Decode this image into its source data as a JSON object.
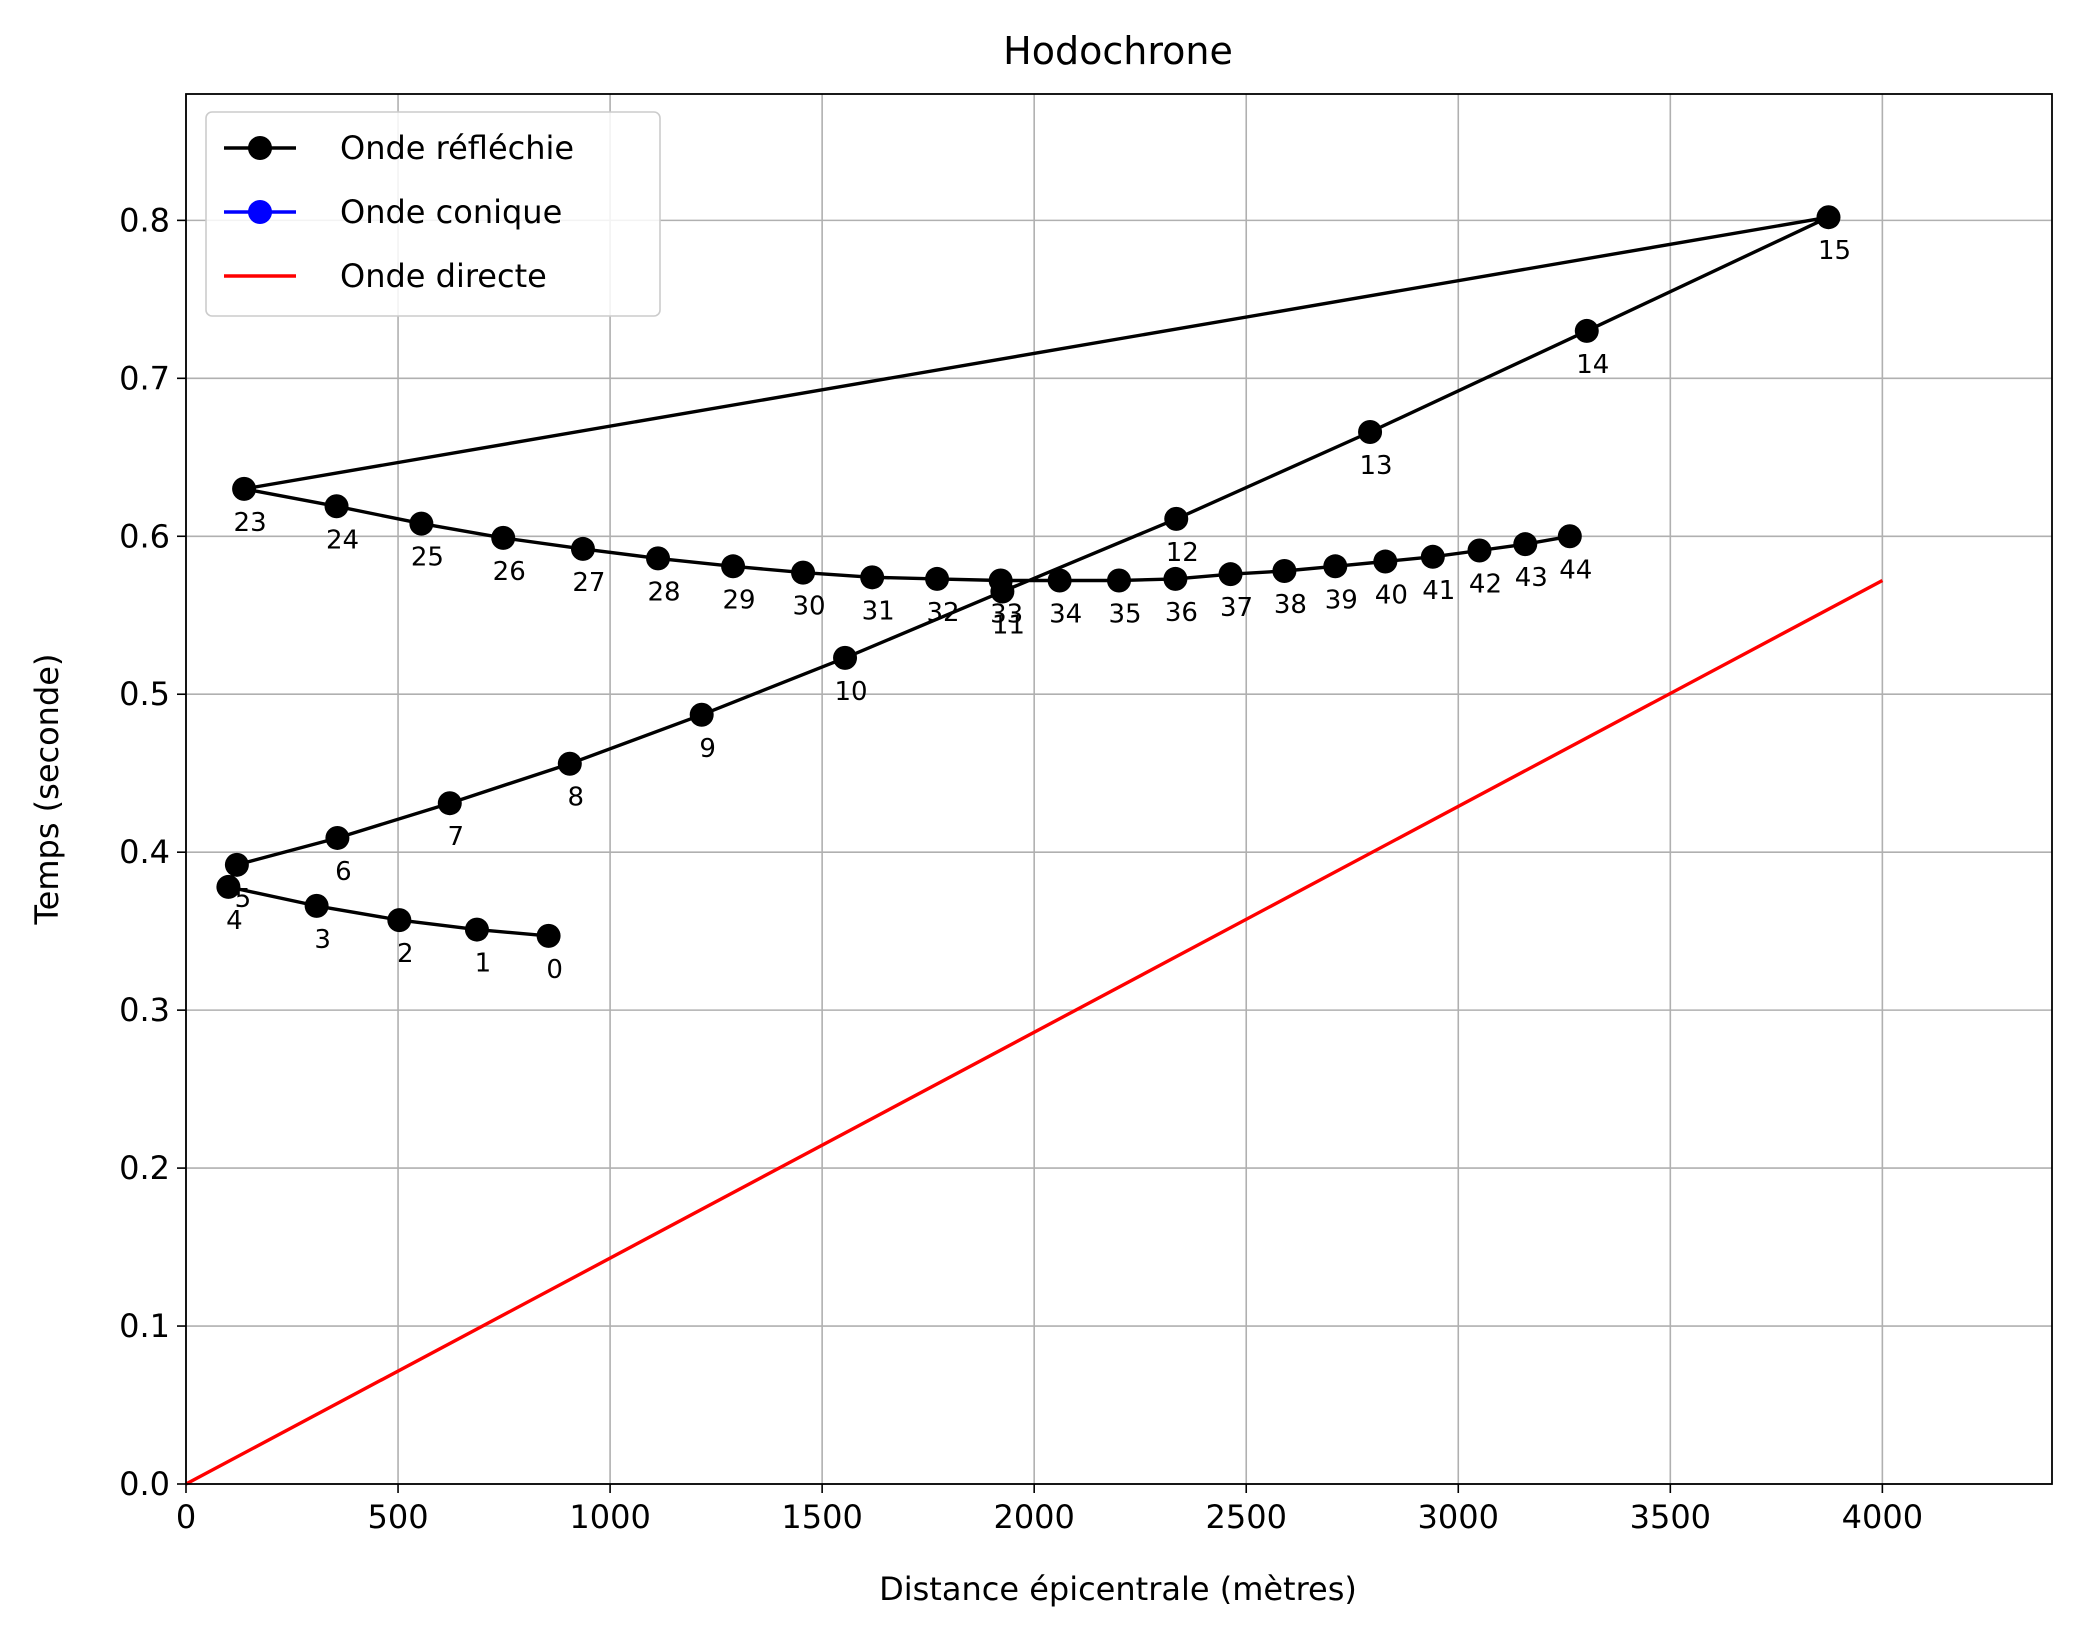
{
  "chart_data": {
    "type": "line",
    "title": "Hodochrone",
    "xlabel": "Distance épicentrale (mètres)",
    "ylabel": "Temps (seconde)",
    "xlim": [
      0,
      4400
    ],
    "ylim": [
      0,
      0.88
    ],
    "x_ticks": [
      "0",
      "500",
      "1000",
      "1500",
      "2000",
      "2500",
      "3000",
      "3500",
      "4000"
    ],
    "y_ticks": [
      "0.0",
      "0.1",
      "0.2",
      "0.3",
      "0.4",
      "0.5",
      "0.6",
      "0.7",
      "0.8"
    ],
    "grid": true,
    "legend_position": "top-left",
    "legend": [
      {
        "label": "Onde réfléchie",
        "color": "#000000",
        "marker": "circle"
      },
      {
        "label": "Onde conique",
        "color": "#0000ff",
        "marker": "circle"
      },
      {
        "label": "Onde directe",
        "color": "#ff0000",
        "marker": "none"
      }
    ],
    "series": [
      {
        "name": "Onde réfléchie",
        "color": "#000000",
        "marker": "circle",
        "points": [
          {
            "label": "0",
            "x": 855,
            "y": 0.347
          },
          {
            "label": "1",
            "x": 686,
            "y": 0.351
          },
          {
            "label": "2",
            "x": 503,
            "y": 0.357
          },
          {
            "label": "3",
            "x": 308,
            "y": 0.366
          },
          {
            "label": "4",
            "x": 100,
            "y": 0.378
          },
          {
            "label": "5",
            "x": 120,
            "y": 0.392
          },
          {
            "label": "6",
            "x": 357,
            "y": 0.409
          },
          {
            "label": "7",
            "x": 622,
            "y": 0.431
          },
          {
            "label": "8",
            "x": 905,
            "y": 0.456
          },
          {
            "label": "9",
            "x": 1216,
            "y": 0.487
          },
          {
            "label": "10",
            "x": 1554,
            "y": 0.523
          },
          {
            "label": "11",
            "x": 1925,
            "y": 0.565
          },
          {
            "label": "12",
            "x": 2335,
            "y": 0.611
          },
          {
            "label": "13",
            "x": 2792,
            "y": 0.666
          },
          {
            "label": "14",
            "x": 3303,
            "y": 0.73
          },
          {
            "label": "15",
            "x": 3873,
            "y": 0.802
          },
          {
            "label": "23",
            "x": 137,
            "y": 0.63
          },
          {
            "label": "24",
            "x": 355,
            "y": 0.619
          },
          {
            "label": "25",
            "x": 555,
            "y": 0.608
          },
          {
            "label": "26",
            "x": 748,
            "y": 0.599
          },
          {
            "label": "27",
            "x": 936,
            "y": 0.592
          },
          {
            "label": "28",
            "x": 1113,
            "y": 0.586
          },
          {
            "label": "29",
            "x": 1290,
            "y": 0.581
          },
          {
            "label": "30",
            "x": 1455,
            "y": 0.577
          },
          {
            "label": "31",
            "x": 1618,
            "y": 0.574
          },
          {
            "label": "32",
            "x": 1771,
            "y": 0.573
          },
          {
            "label": "33",
            "x": 1921,
            "y": 0.572
          },
          {
            "label": "34",
            "x": 2060,
            "y": 0.572
          },
          {
            "label": "35",
            "x": 2200,
            "y": 0.572
          },
          {
            "label": "36",
            "x": 2333,
            "y": 0.573
          },
          {
            "label": "37",
            "x": 2463,
            "y": 0.576
          },
          {
            "label": "38",
            "x": 2590,
            "y": 0.578
          },
          {
            "label": "39",
            "x": 2710,
            "y": 0.581
          },
          {
            "label": "40",
            "x": 2828,
            "y": 0.584
          },
          {
            "label": "41",
            "x": 2940,
            "y": 0.587
          },
          {
            "label": "42",
            "x": 3050,
            "y": 0.591
          },
          {
            "label": "43",
            "x": 3158,
            "y": 0.595
          },
          {
            "label": "44",
            "x": 3263,
            "y": 0.6
          }
        ]
      },
      {
        "name": "Onde conique",
        "color": "#0000ff",
        "marker": "circle",
        "points": []
      },
      {
        "name": "Onde directe",
        "color": "#ff0000",
        "marker": "none",
        "points": [
          {
            "x": 0,
            "y": 0.0
          },
          {
            "x": 4000,
            "y": 0.572
          }
        ]
      }
    ]
  }
}
